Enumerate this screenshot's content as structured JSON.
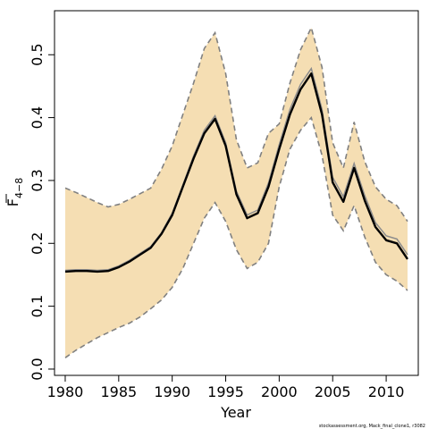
{
  "chart_data": {
    "type": "line",
    "xlabel": "Year",
    "ylabel": "F",
    "ylabel_subscript": "4−8",
    "xlim": [
      1979,
      2013
    ],
    "ylim": [
      -0.01,
      0.57
    ],
    "x_ticks": [
      1980,
      1985,
      1990,
      1995,
      2000,
      2005,
      2010
    ],
    "y_ticks": [
      "0.0",
      "0.1",
      "0.2",
      "0.3",
      "0.4",
      "0.5"
    ],
    "footnote": "stockassessment.org, Mack_final_clone1, r3082",
    "colors": {
      "band": "#f5deb3",
      "bound_line": "#808080",
      "estimate": "#000000",
      "inner": "#8c8c8c"
    },
    "x": [
      1980,
      1981,
      1982,
      1983,
      1984,
      1985,
      1986,
      1987,
      1988,
      1989,
      1990,
      1991,
      1992,
      1993,
      1994,
      1995,
      1996,
      1997,
      1998,
      1999,
      2000,
      2001,
      2002,
      2003,
      2004,
      2005,
      2006,
      2007,
      2008,
      2009,
      2010,
      2011,
      2012
    ],
    "series": [
      {
        "role": "estimate",
        "values": [
          0.155,
          0.156,
          0.156,
          0.155,
          0.156,
          0.162,
          0.171,
          0.182,
          0.193,
          0.215,
          0.245,
          0.29,
          0.335,
          0.375,
          0.398,
          0.355,
          0.278,
          0.24,
          0.248,
          0.29,
          0.35,
          0.405,
          0.445,
          0.47,
          0.405,
          0.297,
          0.266,
          0.32,
          0.268,
          0.226,
          0.205,
          0.2,
          0.175
        ]
      },
      {
        "role": "upper",
        "values": [
          0.288,
          0.281,
          0.273,
          0.265,
          0.258,
          0.262,
          0.27,
          0.279,
          0.288,
          0.318,
          0.355,
          0.405,
          0.455,
          0.51,
          0.535,
          0.47,
          0.365,
          0.32,
          0.328,
          0.375,
          0.39,
          0.455,
          0.508,
          0.543,
          0.48,
          0.36,
          0.32,
          0.393,
          0.33,
          0.29,
          0.27,
          0.26,
          0.235
        ]
      },
      {
        "role": "lower",
        "values": [
          0.018,
          0.03,
          0.04,
          0.05,
          0.058,
          0.066,
          0.073,
          0.083,
          0.096,
          0.11,
          0.13,
          0.16,
          0.2,
          0.24,
          0.265,
          0.235,
          0.19,
          0.16,
          0.17,
          0.2,
          0.29,
          0.35,
          0.38,
          0.4,
          0.34,
          0.245,
          0.22,
          0.26,
          0.21,
          0.17,
          0.15,
          0.14,
          0.125
        ]
      },
      {
        "role": "inner",
        "values": [
          0.157,
          0.158,
          0.158,
          0.157,
          0.158,
          0.164,
          0.173,
          0.184,
          0.195,
          0.217,
          0.248,
          0.293,
          0.339,
          0.38,
          0.403,
          0.36,
          0.283,
          0.245,
          0.253,
          0.296,
          0.357,
          0.413,
          0.453,
          0.478,
          0.413,
          0.305,
          0.274,
          0.327,
          0.276,
          0.233,
          0.212,
          0.207,
          0.182
        ]
      }
    ]
  }
}
